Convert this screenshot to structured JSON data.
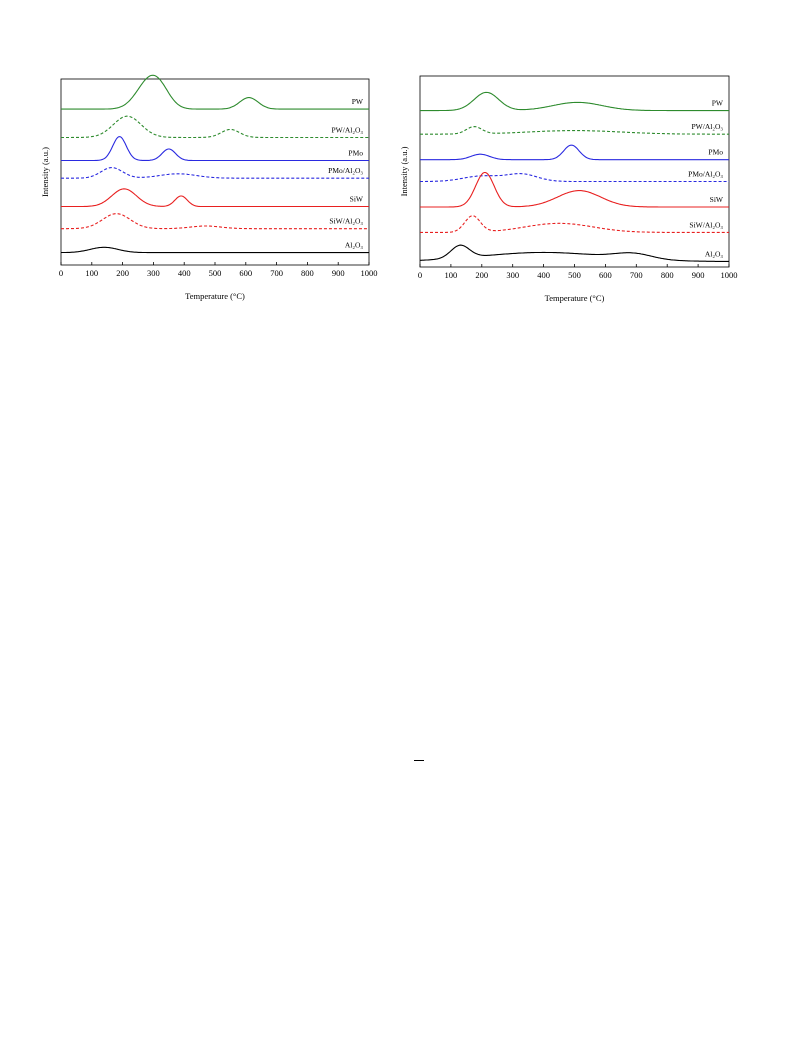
{
  "page": {
    "footer_mark": ""
  },
  "chart_data": [
    {
      "type": "line",
      "xlabel": "Temperature (°C)",
      "ylabel": "Intensity (a.u.)",
      "xlim": [
        0,
        1000
      ],
      "xticks": [
        0,
        100,
        200,
        300,
        400,
        500,
        600,
        700,
        800,
        900,
        1000
      ],
      "grid": false,
      "legend": "inline labels at right end of each curve",
      "series": [
        {
          "name": "PW",
          "color": "#2e8b2e",
          "dash": false,
          "baseline": 8.8,
          "peaks": [
            {
              "x": 280,
              "h": 1.3,
              "w": 40
            },
            {
              "x": 320,
              "h": 0.9,
              "w": 35
            },
            {
              "x": 610,
              "h": 0.65,
              "w": 30
            }
          ]
        },
        {
          "name": "PW/Al2O3",
          "color": "#2e8b2e",
          "dash": true,
          "baseline": 7.2,
          "peaks": [
            {
              "x": 215,
              "h": 1.2,
              "w": 45
            },
            {
              "x": 550,
              "h": 0.45,
              "w": 30
            }
          ]
        },
        {
          "name": "PMo",
          "color": "#2a2ae0",
          "dash": false,
          "baseline": 5.9,
          "peaks": [
            {
              "x": 190,
              "h": 1.35,
              "w": 22
            },
            {
              "x": 350,
              "h": 0.65,
              "w": 22
            }
          ]
        },
        {
          "name": "PMo/Al2O3",
          "color": "#2a2ae0",
          "dash": true,
          "baseline": 4.9,
          "peaks": [
            {
              "x": 165,
              "h": 0.6,
              "w": 35
            },
            {
              "x": 380,
              "h": 0.25,
              "w": 60
            }
          ]
        },
        {
          "name": "SiW",
          "color": "#e82020",
          "dash": false,
          "baseline": 3.3,
          "peaks": [
            {
              "x": 205,
              "h": 1.0,
              "w": 40
            },
            {
              "x": 390,
              "h": 0.6,
              "w": 20
            }
          ]
        },
        {
          "name": "SiW/Al2O3",
          "color": "#e82020",
          "dash": true,
          "baseline": 2.05,
          "peaks": [
            {
              "x": 180,
              "h": 0.85,
              "w": 45
            },
            {
              "x": 470,
              "h": 0.15,
              "w": 50
            }
          ]
        },
        {
          "name": "Al2O3",
          "color": "#000000",
          "dash": false,
          "baseline": 0.7,
          "peaks": [
            {
              "x": 140,
              "h": 0.3,
              "w": 45
            }
          ]
        }
      ]
    },
    {
      "type": "line",
      "xlabel": "Temperature (°C)",
      "ylabel": "Intensity (a.u.)",
      "xlim": [
        0,
        1000
      ],
      "xticks": [
        0,
        100,
        200,
        300,
        400,
        500,
        600,
        700,
        800,
        900,
        1000
      ],
      "grid": false,
      "legend": "inline labels at right end of each curve",
      "series": [
        {
          "name": "PW",
          "color": "#2e8b2e",
          "dash": false,
          "baseline": 8.6,
          "peaks": [
            {
              "x": 215,
              "h": 1.0,
              "w": 40
            },
            {
              "x": 510,
              "h": 0.45,
              "w": 80
            }
          ]
        },
        {
          "name": "PW/Al2O3",
          "color": "#2e8b2e",
          "dash": true,
          "baseline": 7.3,
          "peaks": [
            {
              "x": 175,
              "h": 0.4,
              "w": 25
            },
            {
              "x": 500,
              "h": 0.2,
              "w": 150
            }
          ]
        },
        {
          "name": "PMo",
          "color": "#2a2ae0",
          "dash": false,
          "baseline": 5.9,
          "peaks": [
            {
              "x": 195,
              "h": 0.3,
              "w": 30
            },
            {
              "x": 490,
              "h": 0.8,
              "w": 25
            }
          ]
        },
        {
          "name": "PMo/Al2O3",
          "color": "#2a2ae0",
          "dash": true,
          "baseline": 4.7,
          "peaks": [
            {
              "x": 200,
              "h": 0.3,
              "w": 60
            },
            {
              "x": 330,
              "h": 0.4,
              "w": 50
            }
          ]
        },
        {
          "name": "SiW",
          "color": "#e82020",
          "dash": false,
          "baseline": 3.3,
          "peaks": [
            {
              "x": 210,
              "h": 1.9,
              "w": 30
            },
            {
              "x": 515,
              "h": 0.9,
              "w": 70
            }
          ]
        },
        {
          "name": "SiW/Al2O3",
          "color": "#e82020",
          "dash": true,
          "baseline": 1.9,
          "peaks": [
            {
              "x": 170,
              "h": 0.9,
              "w": 25
            },
            {
              "x": 450,
              "h": 0.5,
              "w": 110
            }
          ]
        },
        {
          "name": "Al2O3",
          "color": "#000000",
          "dash": false,
          "baseline": 0.3,
          "peaks": [
            {
              "x": 130,
              "h": 0.7,
              "w": 30
            },
            {
              "x": 400,
              "h": 0.5,
              "w": 200
            },
            {
              "x": 690,
              "h": 0.3,
              "w": 60
            }
          ]
        }
      ]
    }
  ]
}
